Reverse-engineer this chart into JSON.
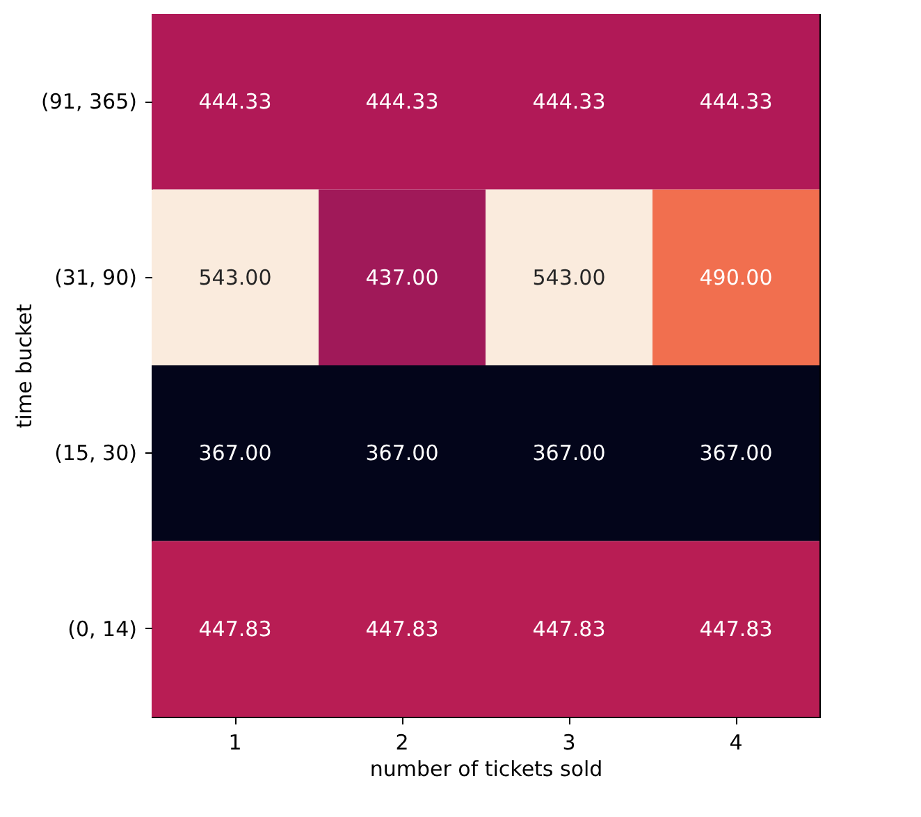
{
  "chart_data": {
    "type": "heatmap",
    "xlabel": "number of tickets sold",
    "ylabel": "time bucket",
    "categories": [
      "1",
      "2",
      "3",
      "4"
    ],
    "y_categories": [
      "(91, 365)",
      "(31, 90)",
      "(15, 30)",
      "(0, 14)"
    ],
    "cells": [
      [
        444.33,
        444.33,
        444.33,
        444.33
      ],
      [
        543.0,
        437.0,
        543.0,
        490.0
      ],
      [
        367.0,
        367.0,
        367.0,
        367.0
      ],
      [
        447.83,
        447.83,
        447.83,
        447.83
      ]
    ],
    "cell_labels": [
      [
        "444.33",
        "444.33",
        "444.33",
        "444.33"
      ],
      [
        "543.00",
        "437.00",
        "543.00",
        "490.00"
      ],
      [
        "367.00",
        "367.00",
        "367.00",
        "367.00"
      ],
      [
        "447.83",
        "447.83",
        "447.83",
        "447.83"
      ]
    ]
  }
}
